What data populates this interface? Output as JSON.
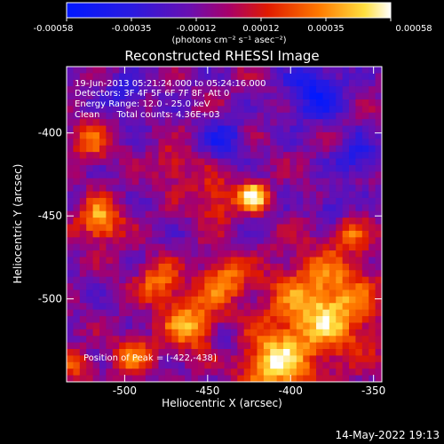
{
  "colorbar": {
    "tick_labels": [
      "-0.00058",
      "-0.00035",
      "-0.00012",
      "0.00012",
      "0.00035",
      "0.00058"
    ],
    "unit_label": "(photons cm⁻² s⁻¹ asec⁻²)",
    "range": [
      -0.00058,
      0.00058
    ]
  },
  "title": "Reconstructed RHESSI Image",
  "info_lines": [
    "19-Jun-2013 05:21:24.000 to 05:24:16.000",
    "Detectors: 3F 4F 5F 6F 7F 8F, Att 0",
    "Energy Range: 12.0 - 25.0 keV",
    "Clean      Total counts: 4.36E+03"
  ],
  "peak_label": "Position of Peak = [-422,-438]",
  "footer_timestamp": "14-May-2022 19:13",
  "chart_data": {
    "type": "heatmap",
    "title": "Reconstructed RHESSI Image",
    "xlabel": "Heliocentric X (arcsec)",
    "ylabel": "Heliocentric Y (arcsec)",
    "xlim": [
      -535,
      -345
    ],
    "ylim": [
      -550,
      -360
    ],
    "x_ticks": [
      -500,
      -450,
      -400,
      -350
    ],
    "y_ticks": [
      -400,
      -450,
      -500
    ],
    "x_tick_labels": [
      "-500",
      "-450",
      "-400",
      "-350"
    ],
    "y_tick_labels": [
      "-400",
      "-450",
      "-500"
    ],
    "colormap": "blue-purple-red-yellow-white",
    "peak": [
      -422,
      -438
    ],
    "sources": [
      {
        "x": -422,
        "y": -438,
        "sigma": 6,
        "amp": 1.0
      },
      {
        "x": -515,
        "y": -453,
        "sigma": 9,
        "amp": 0.85
      },
      {
        "x": -380,
        "y": -505,
        "sigma": 22,
        "amp": 0.9
      },
      {
        "x": -410,
        "y": -540,
        "sigma": 14,
        "amp": 0.85
      },
      {
        "x": -460,
        "y": -515,
        "sigma": 12,
        "amp": 0.75
      },
      {
        "x": -440,
        "y": -488,
        "sigma": 10,
        "amp": 0.65
      },
      {
        "x": -480,
        "y": -490,
        "sigma": 9,
        "amp": 0.6
      },
      {
        "x": -495,
        "y": -535,
        "sigma": 9,
        "amp": 0.55
      },
      {
        "x": -445,
        "y": -440,
        "sigma": 10,
        "amp": 0.5
      },
      {
        "x": -520,
        "y": -405,
        "sigma": 9,
        "amp": 0.5
      },
      {
        "x": -470,
        "y": -420,
        "sigma": 8,
        "amp": 0.45
      },
      {
        "x": -365,
        "y": -460,
        "sigma": 8,
        "amp": 0.45
      },
      {
        "x": -530,
        "y": -540,
        "sigma": 7,
        "amp": 0.45
      },
      {
        "x": -385,
        "y": -375,
        "sigma": 12,
        "amp": -0.6
      },
      {
        "x": -440,
        "y": -405,
        "sigma": 8,
        "amp": -0.5
      },
      {
        "x": -360,
        "y": -415,
        "sigma": 8,
        "amp": -0.5
      },
      {
        "x": -375,
        "y": -445,
        "sigma": 7,
        "amp": -0.45
      },
      {
        "x": -440,
        "y": -525,
        "sigma": 6,
        "amp": -0.4
      },
      {
        "x": -500,
        "y": -378,
        "sigma": 9,
        "amp": -0.35
      }
    ]
  }
}
